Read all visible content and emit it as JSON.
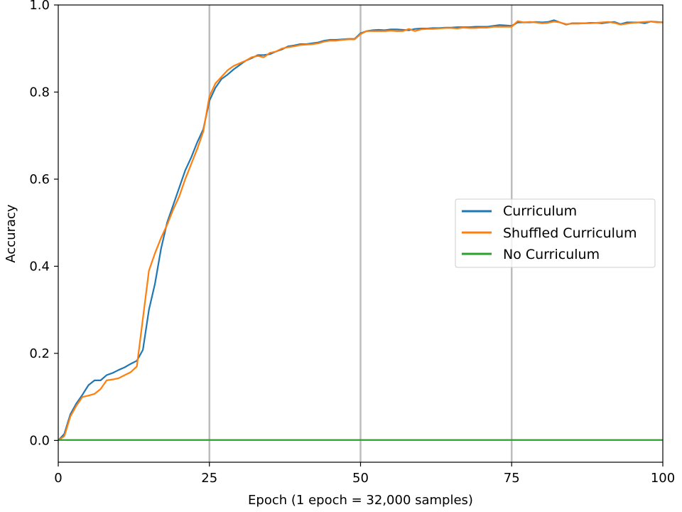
{
  "chart_data": {
    "type": "line",
    "xlabel": "Epoch (1 epoch = 32,000 samples)",
    "ylabel": "Accuracy",
    "xlim": [
      0,
      100
    ],
    "ylim": [
      -0.05,
      1.0
    ],
    "xticks": [
      0,
      25,
      50,
      75,
      100
    ],
    "yticks": [
      0.0,
      0.2,
      0.4,
      0.6,
      0.8,
      1.0
    ],
    "xtick_labels": [
      "0",
      "25",
      "50",
      "75",
      "100"
    ],
    "ytick_labels": [
      "0.0",
      "0.2",
      "0.4",
      "0.6",
      "0.8",
      "1.0"
    ],
    "vlines": [
      25,
      50,
      75
    ],
    "vline_color": "#bdbdbd",
    "grid": false,
    "legend_position": "center-right",
    "series": [
      {
        "name": "Curriculum",
        "color": "#1f77b4",
        "x": [
          0,
          1,
          2,
          3,
          4,
          5,
          6,
          7,
          8,
          9,
          10,
          11,
          12,
          13,
          14,
          15,
          16,
          17,
          18,
          19,
          20,
          21,
          22,
          23,
          24,
          25,
          26,
          27,
          28,
          29,
          30,
          31,
          32,
          33,
          34,
          35,
          36,
          37,
          38,
          39,
          40,
          41,
          42,
          43,
          44,
          45,
          46,
          47,
          48,
          49,
          50,
          51,
          52,
          53,
          54,
          55,
          56,
          57,
          58,
          59,
          60,
          61,
          62,
          63,
          64,
          65,
          66,
          67,
          68,
          69,
          70,
          71,
          72,
          73,
          74,
          75,
          76,
          77,
          78,
          79,
          80,
          81,
          82,
          83,
          84,
          85,
          86,
          87,
          88,
          89,
          90,
          91,
          92,
          93,
          94,
          95,
          96,
          97,
          98,
          99,
          100
        ],
        "y": [
          0.0,
          0.015,
          0.06,
          0.085,
          0.105,
          0.127,
          0.138,
          0.138,
          0.15,
          0.155,
          0.162,
          0.168,
          0.176,
          0.183,
          0.208,
          0.3,
          0.36,
          0.44,
          0.5,
          0.54,
          0.58,
          0.62,
          0.65,
          0.685,
          0.715,
          0.78,
          0.81,
          0.83,
          0.84,
          0.852,
          0.862,
          0.872,
          0.878,
          0.885,
          0.885,
          0.887,
          0.893,
          0.898,
          0.905,
          0.907,
          0.91,
          0.91,
          0.912,
          0.914,
          0.918,
          0.92,
          0.92,
          0.921,
          0.922,
          0.922,
          0.935,
          0.94,
          0.942,
          0.943,
          0.942,
          0.944,
          0.944,
          0.943,
          0.942,
          0.945,
          0.946,
          0.946,
          0.947,
          0.947,
          0.948,
          0.948,
          0.949,
          0.949,
          0.949,
          0.95,
          0.95,
          0.95,
          0.952,
          0.954,
          0.953,
          0.952,
          0.96,
          0.96,
          0.96,
          0.961,
          0.96,
          0.961,
          0.965,
          0.96,
          0.955,
          0.958,
          0.958,
          0.958,
          0.959,
          0.959,
          0.958,
          0.96,
          0.961,
          0.956,
          0.96,
          0.96,
          0.96,
          0.958,
          0.962,
          0.961,
          0.96
        ]
      },
      {
        "name": "Shuffled Curriculum",
        "color": "#ff7f0e",
        "x": [
          0,
          1,
          2,
          3,
          4,
          5,
          6,
          7,
          8,
          9,
          10,
          11,
          12,
          13,
          14,
          15,
          16,
          17,
          18,
          19,
          20,
          21,
          22,
          23,
          24,
          25,
          26,
          27,
          28,
          29,
          30,
          31,
          32,
          33,
          34,
          35,
          36,
          37,
          38,
          39,
          40,
          41,
          42,
          43,
          44,
          45,
          46,
          47,
          48,
          49,
          50,
          51,
          52,
          53,
          54,
          55,
          56,
          57,
          58,
          59,
          60,
          61,
          62,
          63,
          64,
          65,
          66,
          67,
          68,
          69,
          70,
          71,
          72,
          73,
          74,
          75,
          76,
          77,
          78,
          79,
          80,
          81,
          82,
          83,
          84,
          85,
          86,
          87,
          88,
          89,
          90,
          91,
          92,
          93,
          94,
          95,
          96,
          97,
          98,
          99,
          100
        ],
        "y": [
          0.0,
          0.01,
          0.055,
          0.08,
          0.1,
          0.103,
          0.107,
          0.118,
          0.138,
          0.14,
          0.143,
          0.15,
          0.157,
          0.17,
          0.28,
          0.39,
          0.43,
          0.465,
          0.495,
          0.53,
          0.56,
          0.6,
          0.635,
          0.67,
          0.71,
          0.79,
          0.82,
          0.835,
          0.85,
          0.86,
          0.866,
          0.872,
          0.88,
          0.883,
          0.88,
          0.89,
          0.893,
          0.9,
          0.903,
          0.905,
          0.908,
          0.909,
          0.91,
          0.912,
          0.916,
          0.918,
          0.918,
          0.92,
          0.921,
          0.921,
          0.933,
          0.94,
          0.94,
          0.94,
          0.94,
          0.941,
          0.94,
          0.94,
          0.945,
          0.94,
          0.944,
          0.945,
          0.945,
          0.946,
          0.947,
          0.947,
          0.946,
          0.948,
          0.947,
          0.947,
          0.948,
          0.948,
          0.95,
          0.95,
          0.95,
          0.95,
          0.963,
          0.96,
          0.961,
          0.96,
          0.958,
          0.959,
          0.962,
          0.96,
          0.956,
          0.957,
          0.957,
          0.958,
          0.958,
          0.959,
          0.96,
          0.961,
          0.959,
          0.955,
          0.957,
          0.959,
          0.96,
          0.961,
          0.962,
          0.96,
          0.96
        ]
      },
      {
        "name": "No Curriculum",
        "color": "#2ca02c",
        "x": [
          0,
          10,
          20,
          30,
          40,
          50,
          60,
          70,
          80,
          90,
          100
        ],
        "y": [
          0.001,
          0.001,
          0.001,
          0.001,
          0.001,
          0.001,
          0.001,
          0.001,
          0.001,
          0.001,
          0.001
        ]
      }
    ]
  }
}
